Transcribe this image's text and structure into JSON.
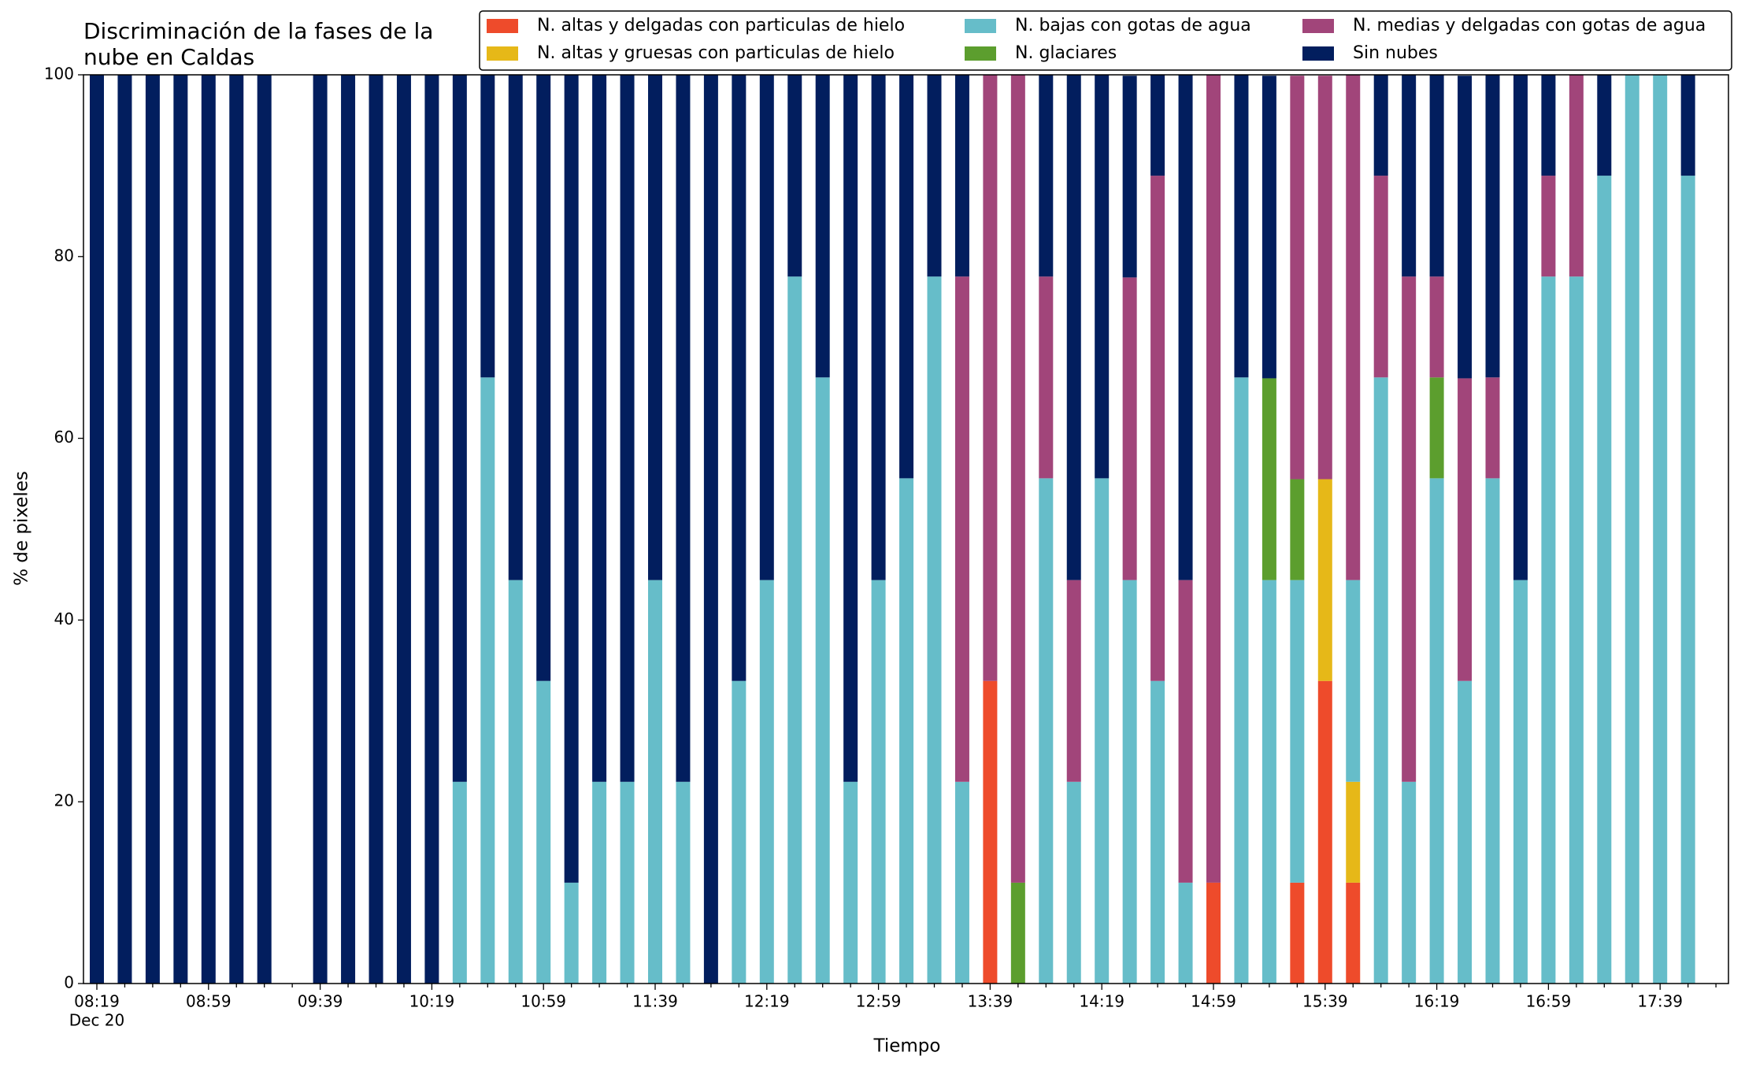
{
  "chart_data": {
    "type": "stacked-bar",
    "title": [
      "Discriminación de la fases de la",
      "nube en Caldas"
    ],
    "x_label": "Tiempo",
    "y_label": "% de pixeles",
    "x_tick_sublabel": "Dec 20",
    "categories": [
      "08:19",
      null,
      null,
      null,
      "08:59",
      null,
      null,
      null,
      "09:39",
      null,
      null,
      null,
      "10:19",
      null,
      null,
      null,
      "10:59",
      null,
      null,
      null,
      "11:39",
      null,
      null,
      null,
      "12:19",
      null,
      null,
      null,
      "12:59",
      null,
      null,
      null,
      "13:39",
      null,
      null,
      null,
      "14:19",
      null,
      null,
      null,
      "14:59",
      null,
      null,
      null,
      "15:39",
      null,
      null,
      null,
      "16:19",
      null,
      null,
      null,
      "16:59",
      null,
      null,
      null,
      "17:39",
      null
    ],
    "ylim": [
      0,
      100
    ],
    "yticks": [
      0,
      20,
      40,
      60,
      80,
      100
    ],
    "legend": "top-right",
    "series": [
      {
        "name": "N. altas y delgadas con particulas de hielo",
        "color": "#ee4b2b",
        "values": [
          0,
          0,
          0,
          0,
          0,
          0,
          0,
          null,
          0,
          0,
          0,
          0,
          0,
          0,
          0,
          0,
          0,
          0,
          0,
          0,
          0,
          0,
          0,
          0,
          0,
          0,
          0,
          0,
          0,
          0,
          0,
          0,
          33.3,
          0,
          0,
          0,
          0,
          0,
          0,
          0,
          11.1,
          0,
          0,
          11.1,
          33.3,
          11.1,
          0,
          0,
          0,
          0,
          0,
          0,
          0,
          0,
          0,
          0,
          0,
          0
        ]
      },
      {
        "name": "N. altas y gruesas con particulas de hielo",
        "color": "#e6b818",
        "values": [
          0,
          0,
          0,
          0,
          0,
          0,
          0,
          null,
          0,
          0,
          0,
          0,
          0,
          0,
          0,
          0,
          0,
          0,
          0,
          0,
          0,
          0,
          0,
          0,
          0,
          0,
          0,
          0,
          0,
          0,
          0,
          0,
          0,
          0,
          0,
          0,
          0,
          0,
          0,
          0,
          0,
          0,
          0,
          0,
          22.2,
          11.1,
          0,
          0,
          0,
          0,
          0,
          0,
          0,
          0,
          0,
          0,
          0,
          0
        ]
      },
      {
        "name": "N. bajas con gotas de agua",
        "color": "#66bdc9",
        "values": [
          0,
          0,
          0,
          0,
          0,
          0,
          0,
          null,
          0,
          0,
          0,
          0,
          0,
          22.2,
          66.7,
          44.4,
          33.3,
          11.1,
          22.2,
          22.2,
          44.4,
          22.2,
          0,
          33.3,
          44.4,
          77.8,
          66.7,
          22.2,
          44.4,
          55.6,
          77.8,
          22.2,
          0,
          0,
          55.6,
          22.2,
          55.6,
          44.4,
          33.3,
          11.1,
          0,
          66.7,
          44.4,
          33.3,
          0,
          22.2,
          66.7,
          22.2,
          55.6,
          33.3,
          55.6,
          44.4,
          77.8,
          77.8,
          88.9,
          100,
          100,
          88.9
        ]
      },
      {
        "name": "N. glaciares",
        "color": "#5c9e2e",
        "values": [
          0,
          0,
          0,
          0,
          0,
          0,
          0,
          null,
          0,
          0,
          0,
          0,
          0,
          0,
          0,
          0,
          0,
          0,
          0,
          0,
          0,
          0,
          0,
          0,
          0,
          0,
          0,
          0,
          0,
          0,
          0,
          0,
          0,
          11.1,
          0,
          0,
          0,
          0,
          0,
          0,
          0,
          0,
          22.2,
          11.1,
          0,
          0,
          0,
          0,
          11.1,
          0,
          0,
          0,
          0,
          0,
          0,
          0,
          0,
          0
        ]
      },
      {
        "name": "N. medias y delgadas con gotas de agua",
        "color": "#a1457a",
        "values": [
          0,
          0,
          0,
          0,
          0,
          0,
          0,
          null,
          0,
          0,
          0,
          0,
          0,
          0,
          0,
          0,
          0,
          0,
          0,
          0,
          0,
          0,
          0,
          0,
          0,
          0,
          0,
          0,
          0,
          0,
          0,
          55.6,
          66.7,
          88.9,
          22.2,
          22.2,
          0,
          33.3,
          55.6,
          33.3,
          88.9,
          0,
          0,
          44.4,
          44.4,
          55.6,
          22.2,
          55.6,
          11.1,
          33.3,
          11.1,
          0,
          11.1,
          22.2,
          0,
          0,
          0,
          0
        ]
      },
      {
        "name": "Sin nubes",
        "color": "#021e5e",
        "values": [
          100,
          100,
          100,
          100,
          100,
          100,
          100,
          null,
          100,
          100,
          100,
          100,
          100,
          77.8,
          33.3,
          55.6,
          66.7,
          88.9,
          77.8,
          77.8,
          55.6,
          77.8,
          100,
          66.7,
          55.6,
          22.2,
          33.3,
          77.8,
          55.6,
          44.4,
          22.2,
          22.2,
          0,
          0,
          22.2,
          55.6,
          44.4,
          22.2,
          11.1,
          55.6,
          0,
          33.3,
          33.3,
          0,
          0,
          0,
          11.1,
          22.2,
          22.2,
          33.3,
          33.3,
          55.6,
          11.1,
          0,
          11.1,
          0,
          0,
          11.1
        ]
      }
    ]
  }
}
